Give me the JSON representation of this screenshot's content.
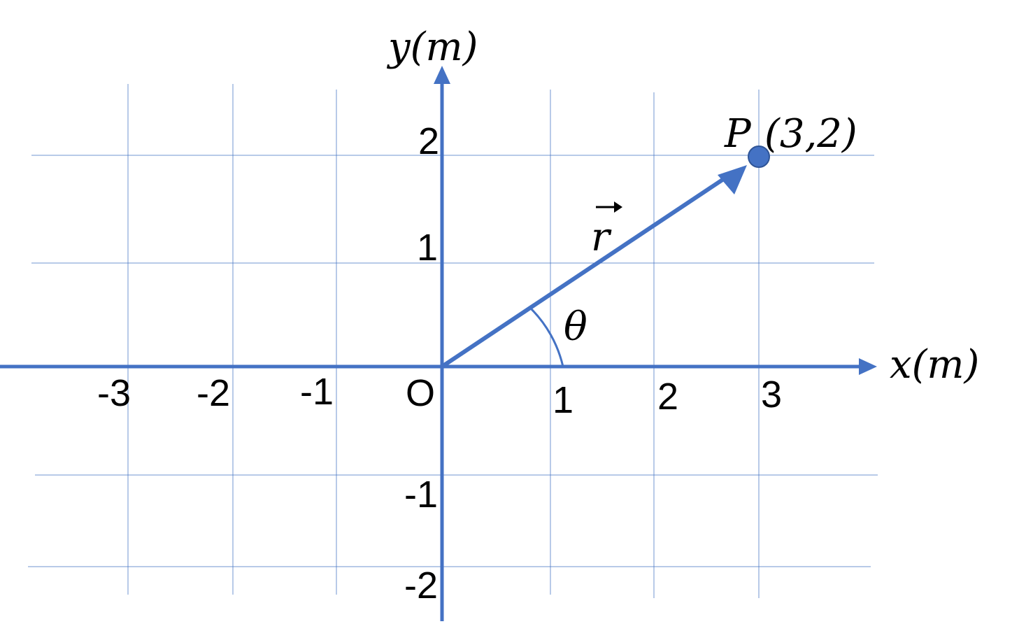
{
  "axes": {
    "x_label": "x(m)",
    "y_label": "y(m)",
    "origin": "O"
  },
  "x_ticks": [
    "-3",
    "-2",
    "-1",
    "1",
    "2",
    "3"
  ],
  "y_ticks": [
    "2",
    "1",
    "-1",
    "-2"
  ],
  "vector": {
    "label": "r",
    "angle": "θ"
  },
  "point": {
    "name": "P",
    "coords": "(3,2)"
  }
}
